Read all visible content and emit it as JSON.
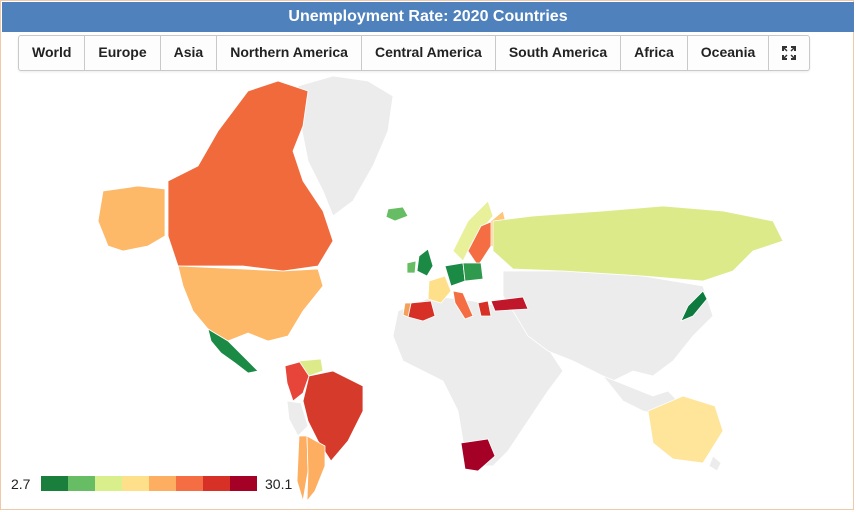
{
  "header": {
    "title": "Unemployment Rate: 2020 Countries"
  },
  "tabs": [
    {
      "label": "World"
    },
    {
      "label": "Europe"
    },
    {
      "label": "Asia"
    },
    {
      "label": "Northern America"
    },
    {
      "label": "Central America"
    },
    {
      "label": "South America"
    },
    {
      "label": "Africa"
    },
    {
      "label": "Oceania"
    }
  ],
  "fullscreen_icon": "expand-icon",
  "legend": {
    "min": "2.7",
    "max": "30.1",
    "colors": [
      "#1a7f3c",
      "#66bd63",
      "#d9ef8b",
      "#fee08b",
      "#fdae61",
      "#f46d43",
      "#d73027",
      "#a50026"
    ]
  },
  "map_colors": {
    "no_data": "#ececec",
    "border": "#ffffff"
  },
  "countries": [
    {
      "name": "Greenland",
      "color": "#ececec"
    },
    {
      "name": "Canada",
      "color": "#f06a3c"
    },
    {
      "name": "Alaska (USA)",
      "color": "#fdb868"
    },
    {
      "name": "United States",
      "color": "#fdb868"
    },
    {
      "name": "Mexico",
      "color": "#1a8a45"
    },
    {
      "name": "Colombia",
      "color": "#e8453a"
    },
    {
      "name": "Venezuela",
      "color": "#dcea8a"
    },
    {
      "name": "Brazil",
      "color": "#d63a2a"
    },
    {
      "name": "Peru",
      "color": "#ececec"
    },
    {
      "name": "Chile",
      "color": "#fdae61"
    },
    {
      "name": "Argentina",
      "color": "#fdae61"
    },
    {
      "name": "Iceland",
      "color": "#66bd63"
    },
    {
      "name": "Norway",
      "color": "#e8f09a"
    },
    {
      "name": "Sweden",
      "color": "#f46d43"
    },
    {
      "name": "Finland",
      "color": "#fdc679"
    },
    {
      "name": "United Kingdom",
      "color": "#1a8a45"
    },
    {
      "name": "Ireland",
      "color": "#66bd63"
    },
    {
      "name": "France",
      "color": "#fee08b"
    },
    {
      "name": "Spain",
      "color": "#d73027"
    },
    {
      "name": "Portugal",
      "color": "#f4a05a"
    },
    {
      "name": "Germany",
      "color": "#1a8a45"
    },
    {
      "name": "Poland",
      "color": "#2f9a4e"
    },
    {
      "name": "Italy",
      "color": "#f46d43"
    },
    {
      "name": "Greece",
      "color": "#d73027"
    },
    {
      "name": "Turkey",
      "color": "#c0182a"
    },
    {
      "name": "Russia",
      "color": "#dcea8a"
    },
    {
      "name": "Japan",
      "color": "#0f7a3e"
    },
    {
      "name": "South Africa",
      "color": "#a50026"
    },
    {
      "name": "Australia",
      "color": "#fee59a"
    },
    {
      "name": "New Zealand",
      "color": "#ececec"
    }
  ]
}
